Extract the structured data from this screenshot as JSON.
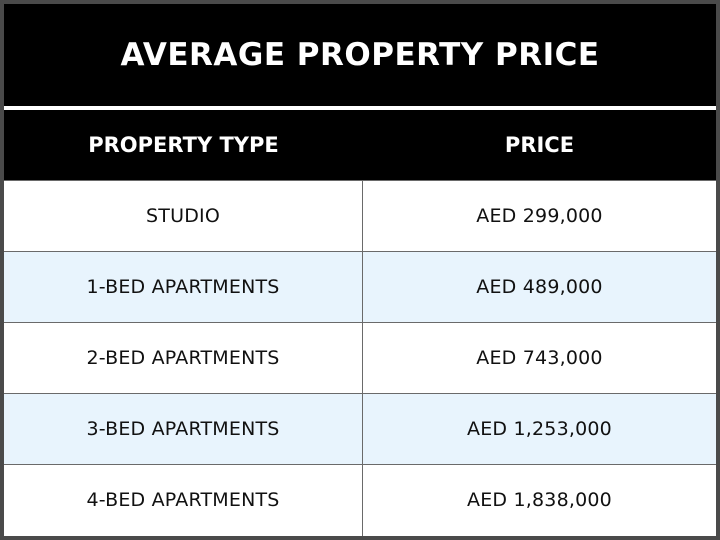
{
  "title": "AVERAGE PROPERTY PRICE",
  "chart_data": {
    "type": "table",
    "title": "AVERAGE PROPERTY PRICE",
    "columns": [
      "PROPERTY TYPE",
      "PRICE"
    ],
    "rows": [
      [
        "STUDIO",
        "AED 299,000"
      ],
      [
        "1-BED APARTMENTS",
        "AED 489,000"
      ],
      [
        "2-BED APARTMENTS",
        "AED 743,000"
      ],
      [
        "3-BED APARTMENTS",
        "AED 1,253,000"
      ],
      [
        "4-BED APARTMENTS",
        "AED 1,838,000"
      ]
    ]
  },
  "colors": {
    "header_background": "#000000",
    "header_text": "#ffffff",
    "row_odd_background": "#ffffff",
    "row_even_background": "#e8f4fd",
    "gridline": "#6a6a6a"
  }
}
